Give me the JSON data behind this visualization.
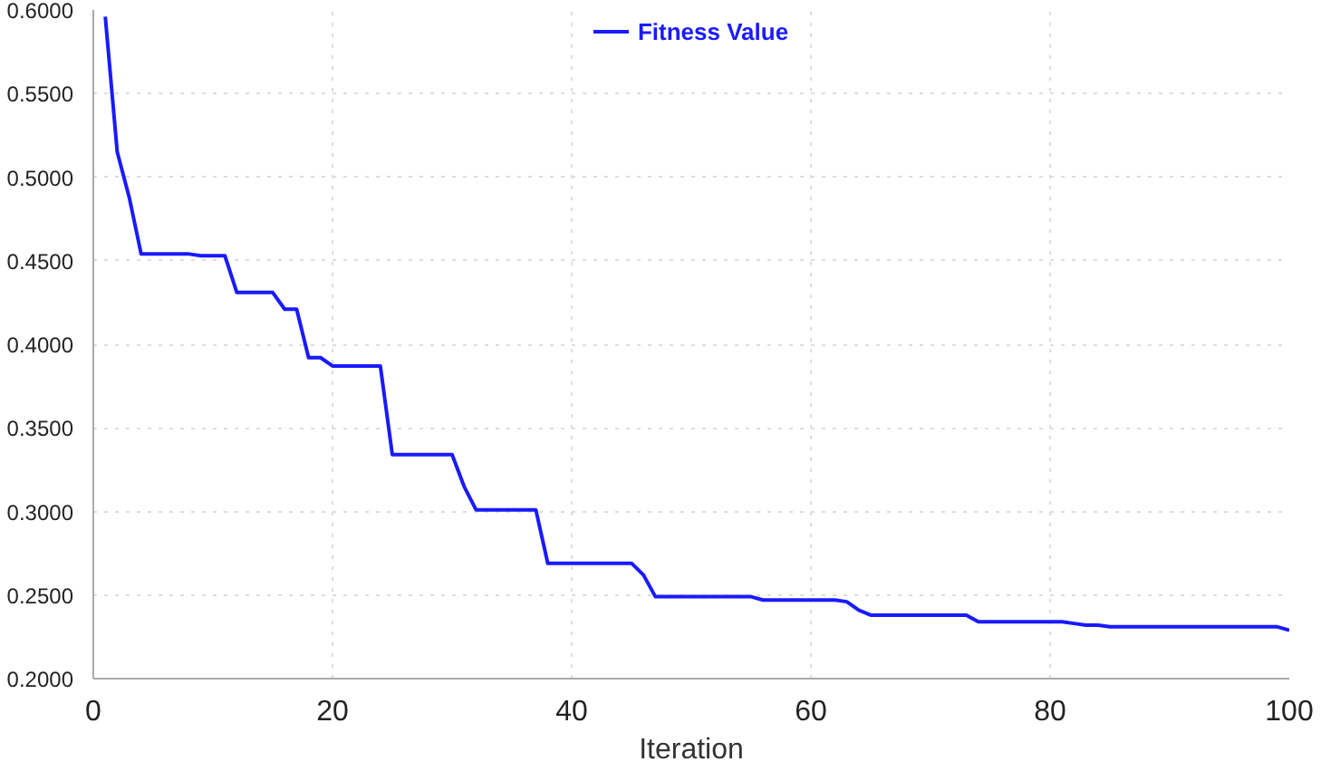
{
  "chart_data": {
    "type": "line",
    "xlabel": "Iteration",
    "legend": "top",
    "grid": true,
    "marker": "none",
    "line_style": "solid",
    "xlim": [
      0,
      100
    ],
    "xticks": [
      0,
      20,
      40,
      60,
      80,
      100
    ],
    "ylim": [
      0.2,
      0.6
    ],
    "yticks": [
      {
        "value": 0.2,
        "label": "0.2000"
      },
      {
        "value": 0.25,
        "label": "0.2500"
      },
      {
        "value": 0.3,
        "label": "0.3000"
      },
      {
        "value": 0.35,
        "label": "0.3500"
      },
      {
        "value": 0.4,
        "label": "0.4000"
      },
      {
        "value": 0.45,
        "label": "0.4500"
      },
      {
        "value": 0.5,
        "label": "0.5000"
      },
      {
        "value": 0.55,
        "label": "0.5500"
      },
      {
        "value": 0.6,
        "label": "0.6000"
      }
    ],
    "x": [
      1,
      2,
      3,
      4,
      5,
      6,
      7,
      8,
      9,
      10,
      11,
      12,
      13,
      14,
      15,
      16,
      17,
      18,
      19,
      20,
      21,
      22,
      23,
      24,
      25,
      26,
      27,
      28,
      29,
      30,
      31,
      32,
      33,
      34,
      35,
      36,
      37,
      38,
      39,
      40,
      41,
      42,
      43,
      44,
      45,
      46,
      47,
      48,
      49,
      50,
      51,
      52,
      53,
      54,
      55,
      56,
      57,
      58,
      59,
      60,
      61,
      62,
      63,
      64,
      65,
      66,
      67,
      68,
      69,
      70,
      71,
      72,
      73,
      74,
      75,
      76,
      77,
      78,
      79,
      80,
      81,
      82,
      83,
      84,
      85,
      86,
      87,
      88,
      89,
      90,
      91,
      92,
      93,
      94,
      95,
      96,
      97,
      98,
      99,
      100
    ],
    "series": [
      {
        "name": "Fitness Value",
        "color": "#1a1aff",
        "values": [
          0.596,
          0.515,
          0.488,
          0.454,
          0.454,
          0.454,
          0.454,
          0.454,
          0.453,
          0.453,
          0.453,
          0.431,
          0.431,
          0.431,
          0.431,
          0.421,
          0.421,
          0.392,
          0.392,
          0.387,
          0.387,
          0.387,
          0.387,
          0.387,
          0.334,
          0.334,
          0.334,
          0.334,
          0.334,
          0.334,
          0.315,
          0.301,
          0.301,
          0.301,
          0.301,
          0.301,
          0.301,
          0.269,
          0.269,
          0.269,
          0.269,
          0.269,
          0.269,
          0.269,
          0.269,
          0.262,
          0.249,
          0.249,
          0.249,
          0.249,
          0.249,
          0.249,
          0.249,
          0.249,
          0.249,
          0.247,
          0.247,
          0.247,
          0.247,
          0.247,
          0.247,
          0.247,
          0.246,
          0.241,
          0.238,
          0.238,
          0.238,
          0.238,
          0.238,
          0.238,
          0.238,
          0.238,
          0.238,
          0.234,
          0.234,
          0.234,
          0.234,
          0.234,
          0.234,
          0.234,
          0.234,
          0.233,
          0.232,
          0.232,
          0.231,
          0.231,
          0.231,
          0.231,
          0.231,
          0.231,
          0.231,
          0.231,
          0.231,
          0.231,
          0.231,
          0.231,
          0.231,
          0.231,
          0.231,
          0.229
        ]
      }
    ]
  }
}
